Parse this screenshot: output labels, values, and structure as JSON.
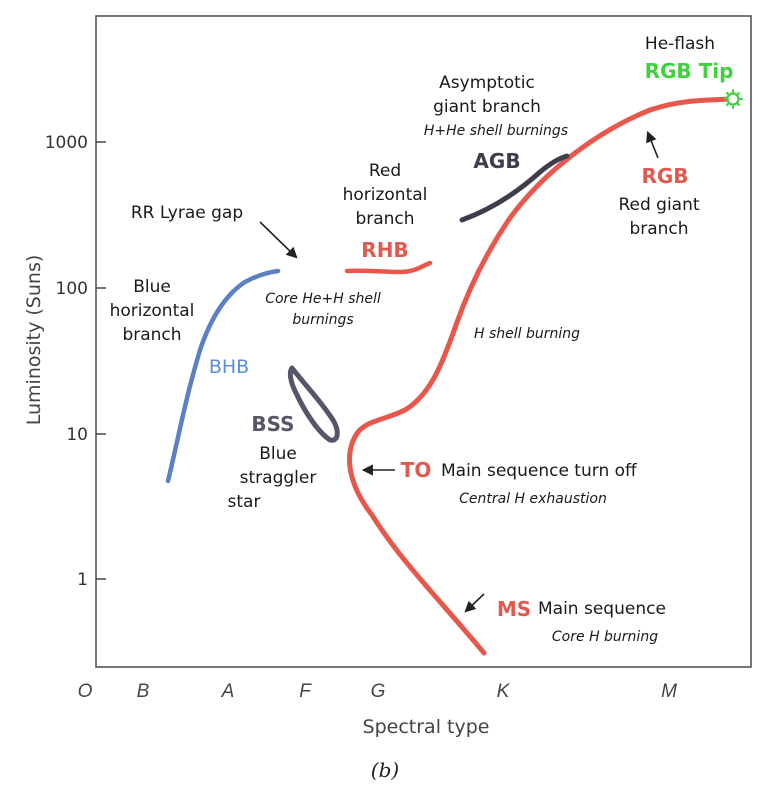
{
  "axes": {
    "y_label": "Luminosity (Suns)",
    "y_ticks": [
      "1000",
      "100",
      "10",
      "1"
    ],
    "x_label": "Spectral type",
    "x_ticks": [
      "O",
      "B",
      "A",
      "F",
      "G",
      "K",
      "M"
    ]
  },
  "caption": "(b)",
  "labels": {
    "he_flash": "He-flash",
    "rgb_tip": "RGB Tip",
    "agb_line1": "Asymptotic",
    "agb_line2": "giant branch",
    "agb_sub": "H+He shell burnings",
    "agb_abbr": "AGB",
    "rgb_abbr": "RGB",
    "rgb_line1": "Red giant",
    "rgb_line2": "branch",
    "rhb_line1": "Red",
    "rhb_line2": "horizontal",
    "rhb_line3": "branch",
    "rhb_abbr": "RHB",
    "rr_lyrae": "RR Lyrae gap",
    "core_line1": "Core He+H shell",
    "core_line2": "burnings",
    "bhb_line1": "Blue",
    "bhb_line2": "horizontal",
    "bhb_line3": "branch",
    "bhb_abbr": "BHB",
    "h_shell": "H shell burning",
    "bss_abbr": "BSS",
    "bss_line1": "Blue",
    "bss_line2": "straggler",
    "bss_line3": "star",
    "to_abbr": "TO",
    "to_text": "Main sequence turn off",
    "to_sub": "Central H exhaustion",
    "ms_abbr": "MS",
    "ms_text": "Main sequence",
    "ms_sub": "Core H burning"
  },
  "colors": {
    "red_track": "#e8574c",
    "blue_track": "#5d7fc3",
    "dark_track": "#3f3d4c",
    "green": "#3ed23c",
    "bhb_label": "#5b8fd4",
    "bss_label": "#55566a",
    "red_label": "#e05a4f"
  }
}
